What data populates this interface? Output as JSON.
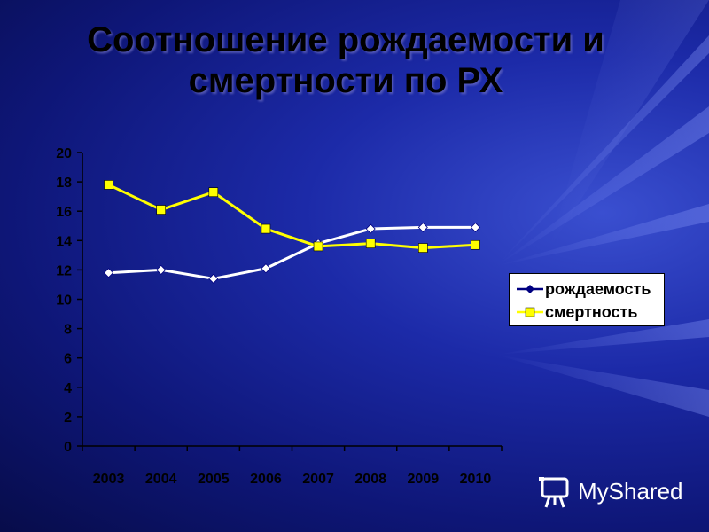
{
  "slide": {
    "title_line1": "Соотношение рождаемости и",
    "title_line2": "смертности по РХ",
    "watermark": "MyShared"
  },
  "colors": {
    "background": "#0e1677",
    "series_birth": "#ffffff",
    "series_death": "#ffff00",
    "axis_text": "#000000"
  },
  "chart_data": {
    "type": "line",
    "title": "Соотношение рождаемости и смертности по РХ",
    "xlabel": "",
    "ylabel": "",
    "categories": [
      "2003",
      "2004",
      "2005",
      "2006",
      "2007",
      "2008",
      "2009",
      "2010"
    ],
    "yticks": [
      "0",
      "2",
      "4",
      "6",
      "8",
      "10",
      "12",
      "14",
      "16",
      "18",
      "20"
    ],
    "ylim": [
      0,
      20
    ],
    "grid": false,
    "legend_position": "right",
    "series": [
      {
        "name": "рождаемость",
        "marker": "diamond",
        "color": "#ffffff",
        "values": [
          11.8,
          12.0,
          11.4,
          12.1,
          13.8,
          14.8,
          14.9,
          14.9
        ]
      },
      {
        "name": "смертность",
        "marker": "square",
        "color": "#ffff00",
        "values": [
          17.8,
          16.1,
          17.3,
          14.8,
          13.6,
          13.8,
          13.5,
          13.7
        ]
      }
    ]
  }
}
